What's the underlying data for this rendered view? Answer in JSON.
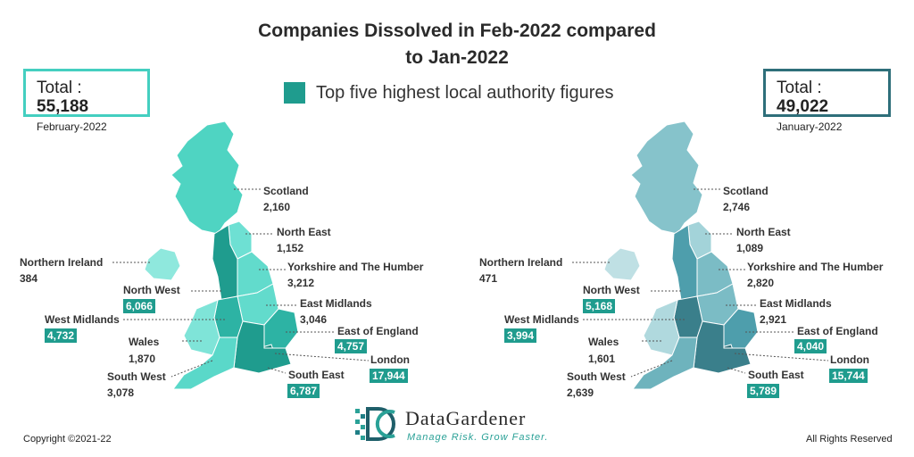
{
  "title_line1": "Companies Dissolved in Feb-2022 compared",
  "title_line2": "to Jan-2022",
  "legend": {
    "label": "Top five highest local authority figures",
    "color": "#1f9c8e"
  },
  "feb": {
    "total_label": "Total :",
    "total_value": "55,188",
    "period": "February-2022",
    "box_color": "#44cfc0",
    "regions": [
      {
        "name": "Scotland",
        "value": "2,160",
        "top5": false
      },
      {
        "name": "North East",
        "value": "1,152",
        "top5": false
      },
      {
        "name": "Yorkshire and The Humber",
        "value": "3,212",
        "top5": false
      },
      {
        "name": "East Midlands",
        "value": "3,046",
        "top5": false
      },
      {
        "name": "East of England",
        "value": "4,757",
        "top5": true
      },
      {
        "name": "London",
        "value": "17,944",
        "top5": true
      },
      {
        "name": "South East",
        "value": "6,787",
        "top5": true
      },
      {
        "name": "South West",
        "value": "3,078",
        "top5": false
      },
      {
        "name": "Wales",
        "value": "1,870",
        "top5": false
      },
      {
        "name": "West Midlands",
        "value": "4,732",
        "top5": true
      },
      {
        "name": "North West",
        "value": "6,066",
        "top5": true
      },
      {
        "name": "Northern Ireland",
        "value": "384",
        "top5": false
      }
    ]
  },
  "jan": {
    "total_label": "Total :",
    "total_value": "49,022",
    "period": "January-2022",
    "box_color": "#2e6f7a",
    "regions": [
      {
        "name": "Scotland",
        "value": "2,746",
        "top5": false
      },
      {
        "name": "North East",
        "value": "1,089",
        "top5": false
      },
      {
        "name": "Yorkshire and The Humber",
        "value": "2,820",
        "top5": false
      },
      {
        "name": "East Midlands",
        "value": "2,921",
        "top5": false
      },
      {
        "name": "East of England",
        "value": "4,040",
        "top5": true
      },
      {
        "name": "London",
        "value": "15,744",
        "top5": true
      },
      {
        "name": "South East",
        "value": "5,789",
        "top5": true
      },
      {
        "name": "South West",
        "value": "2,639",
        "top5": false
      },
      {
        "name": "Wales",
        "value": "1,601",
        "top5": false
      },
      {
        "name": "West Midlands",
        "value": "3,994",
        "top5": true
      },
      {
        "name": "North West",
        "value": "5,168",
        "top5": true
      },
      {
        "name": "Northern Ireland",
        "value": "471",
        "top5": false
      }
    ]
  },
  "footer": {
    "copyright": "Copyright ©2021-22",
    "rights": "All Rights Reserved"
  },
  "logo": {
    "name": "DataGardener",
    "tagline": "Manage Risk. Grow Faster."
  }
}
